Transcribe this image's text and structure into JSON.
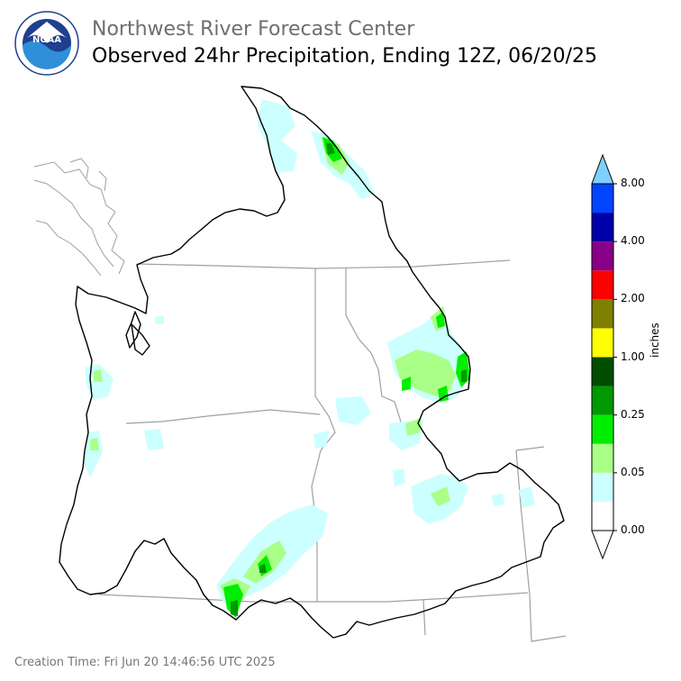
{
  "header": {
    "agency": "Northwest River Forecast Center",
    "product": "Observed 24hr Precipitation, Ending 12Z, 06/20/25"
  },
  "logo": {
    "text": "NOAA",
    "ring_text": "NATIONAL OCEANIC AND ATMOSPHERIC ADMINISTRATION · U.S. DEPARTMENT OF COMMERCE",
    "colors": {
      "ring": "#ffffff",
      "dark_blue": "#1f3f8f",
      "light_blue": "#2f8fd8"
    }
  },
  "legend": {
    "unit": "inches",
    "ticks": [
      "8.00",
      "4.00",
      "2.00",
      "1.00",
      "0.25",
      "0.05",
      "0.00"
    ],
    "bins": [
      {
        "color": "#ffffff"
      },
      {
        "color": "#ccffff"
      },
      {
        "color": "#aaff88"
      },
      {
        "color": "#00ee00"
      },
      {
        "color": "#009900"
      },
      {
        "color": "#004d00"
      },
      {
        "color": "#ffff00"
      },
      {
        "color": "#7f7f00"
      },
      {
        "color": "#ff0000"
      },
      {
        "color": "#880088"
      },
      {
        "color": "#0000aa"
      },
      {
        "color": "#0044ff"
      }
    ],
    "over_color": "#7fd0ff",
    "under_color": "#ffffff"
  },
  "footer": {
    "creation_time": "Creation Time: Fri Jun 20 14:46:56 UTC 2025"
  }
}
